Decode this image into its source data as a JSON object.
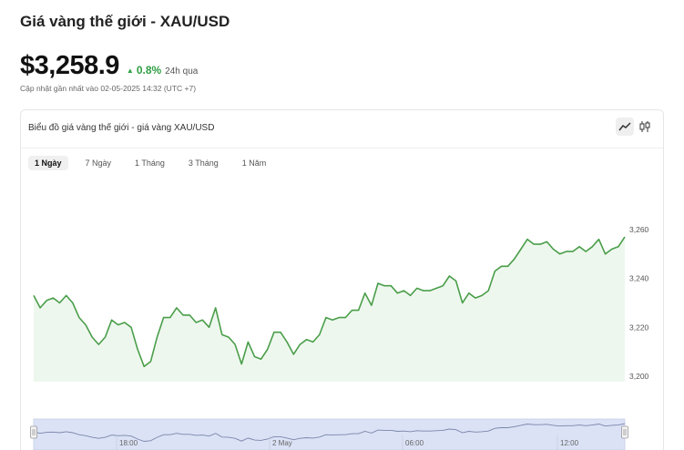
{
  "page": {
    "title": "Giá vàng thế giới - XAU/USD",
    "price": "$3,258.9",
    "change": "0.8%",
    "change_period": "24h qua",
    "updated": "Cập nhật gần nhất vào 02-05-2025 14:32 (UTC +7)"
  },
  "colors": {
    "line": "#4a9e4a",
    "area": "#eef7ee",
    "change": "#2e9e44",
    "navigator_fill": "#dbe2f6"
  },
  "chart_card": {
    "title": "Biểu đồ giá vàng thế giới - giá vàng XAU/USD",
    "type_buttons": [
      {
        "icon": "line-chart-icon",
        "active": true
      },
      {
        "icon": "candlestick-icon",
        "active": false
      }
    ],
    "range_tabs": [
      {
        "label": "1 Ngày",
        "active": true
      },
      {
        "label": "7 Ngày",
        "active": false
      },
      {
        "label": "1 Tháng",
        "active": false
      },
      {
        "label": "3 Tháng",
        "active": false
      },
      {
        "label": "1 Năm",
        "active": false
      }
    ]
  },
  "chart_data": {
    "type": "area",
    "title": "",
    "xlabel": "",
    "ylabel": "",
    "ylim": [
      3198,
      3268
    ],
    "y_ticks": [
      3200,
      3220,
      3240,
      3260
    ],
    "y_tick_labels": [
      "3,200",
      "3,220",
      "3,240",
      "3,260"
    ],
    "grid": false,
    "series": [
      {
        "values": [
          3233,
          3228,
          3231,
          3232,
          3230,
          3233,
          3230,
          3224,
          3221,
          3216,
          3213,
          3216,
          3223,
          3221,
          3222,
          3220,
          3211,
          3204,
          3206,
          3216,
          3224,
          3224,
          3228,
          3225,
          3225,
          3222,
          3223,
          3220,
          3228,
          3217,
          3216,
          3213,
          3205,
          3214,
          3208,
          3207,
          3211,
          3218,
          3218,
          3214,
          3209,
          3213,
          3215,
          3214,
          3217,
          3224,
          3223,
          3224,
          3224,
          3227,
          3227,
          3234,
          3229,
          3238,
          3237,
          3237,
          3234,
          3235,
          3233,
          3236,
          3235,
          3235,
          3236,
          3237,
          3241,
          3239,
          3230,
          3234,
          3232,
          3233,
          3235,
          3243,
          3245,
          3245,
          3248,
          3252,
          3256,
          3254,
          3254,
          3255,
          3252,
          3250,
          3251,
          3251,
          3253,
          3251,
          3253,
          3256,
          3250,
          3252,
          3253,
          3257
        ]
      }
    ],
    "navigator": {
      "x_tick_labels": [
        "18:00",
        "2 May",
        "06:00",
        "12:00"
      ]
    }
  }
}
